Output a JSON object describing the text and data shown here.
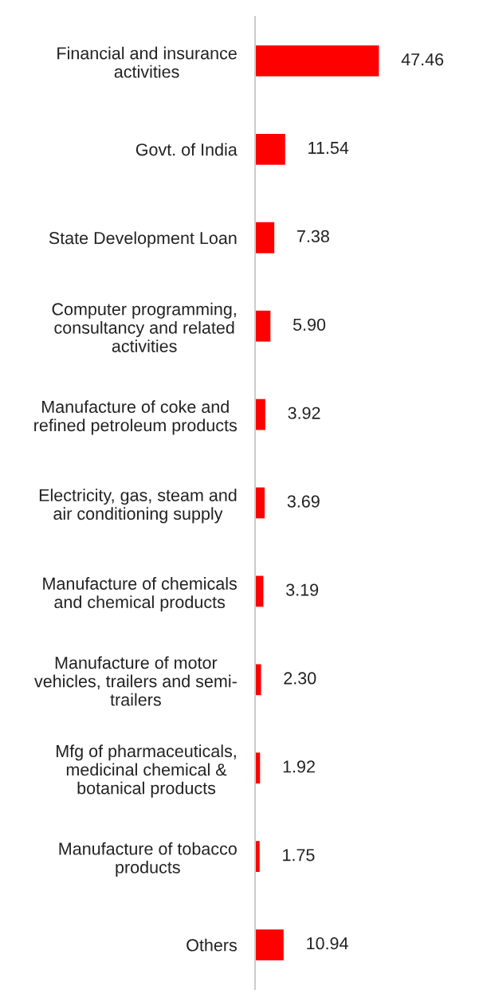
{
  "chart_data": {
    "type": "bar",
    "orientation": "horizontal",
    "data_labels": true,
    "grid": false,
    "legend": false,
    "tick_labels": "y",
    "categories": [
      "Financial and insurance\nactivities",
      "Govt. of India",
      "State Development Loan",
      "Computer programming,\nconsultancy and related\nactivities",
      "Manufacture of coke and\nrefined petroleum products",
      "Electricity, gas, steam and\nair conditioning supply",
      "Manufacture of chemicals\nand chemical products",
      "Manufacture of motor\nvehicles, trailers and semi-\ntrailers",
      "Mfg of pharmaceuticals,\nmedicinal chemical &\nbotanical products",
      "Manufacture of tobacco\nproducts",
      "Others"
    ],
    "values": [
      47.46,
      11.54,
      7.38,
      5.9,
      3.92,
      3.69,
      3.19,
      2.3,
      1.92,
      1.75,
      10.94
    ],
    "value_labels": [
      "47.46",
      "11.54",
      "7.38",
      "5.90",
      "3.92",
      "3.69",
      "3.19",
      "2.30",
      "1.92",
      "1.75",
      "10.94"
    ],
    "color": "#ff0000"
  }
}
